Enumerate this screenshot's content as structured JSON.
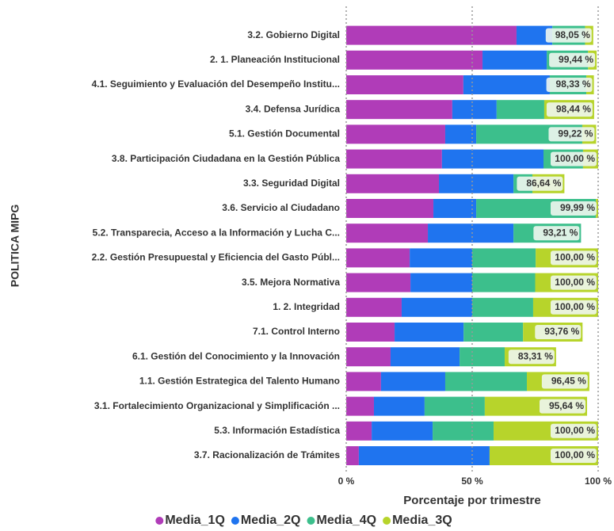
{
  "chart_data": {
    "type": "stacked-barh",
    "ylabel": "POLITICA MIPG",
    "xlabel": "Porcentaje por trimestre",
    "xlim": [
      0,
      100
    ],
    "xticks": [
      {
        "value": 0,
        "label": "0 %"
      },
      {
        "value": 50,
        "label": "50 %"
      },
      {
        "value": 100,
        "label": "100 %"
      }
    ],
    "grid": true,
    "legend": "bottom",
    "categories": [
      "3.2. Gobierno Digital",
      "2. 1. Planeación Institucional",
      "4.1. Seguimiento y Evaluación del Desempeño Institu...",
      "3.4. Defensa Jurídica",
      "5.1. Gestión Documental",
      "3.8. Participación Ciudadana en la Gestión Pública",
      "3.3. Seguridad Digital",
      "3.6. Servicio al Ciudadano",
      "5.2. Transparecia, Acceso a la Información y Lucha C...",
      "2.2. Gestión Presupuestal y Eficiencia del Gasto Públ...",
      "3.5. Mejora Normativa",
      "1. 2. Integridad",
      "7.1. Control Interno",
      "6.1. Gestión del Conocimiento y la Innovación",
      "1.1. Gestión Estrategica del Talento Humano",
      "3.1. Fortalecimiento Organizacional y Simplificación ...",
      "5.3. Información Estadística",
      "3.7. Racionalización de Trámites"
    ],
    "series": [
      {
        "name": "Media_1Q",
        "color": "#b03cb8",
        "values": [
          67.6,
          54.1,
          46.5,
          42.1,
          39.3,
          38.0,
          36.8,
          34.6,
          32.4,
          25.2,
          25.5,
          22.0,
          19.2,
          17.6,
          13.8,
          11.0,
          10.1,
          5.0
        ]
      },
      {
        "name": "Media_2Q",
        "color": "#1f74ef",
        "values": [
          14.2,
          25.5,
          34.3,
          17.6,
          12.3,
          40.3,
          29.6,
          17.0,
          34.0,
          24.8,
          24.5,
          28.0,
          27.4,
          27.4,
          25.5,
          20.1,
          24.2,
          51.9
        ]
      },
      {
        "name": "Media_4Q",
        "color": "#3cbf8c",
        "values": [
          13.0,
          16.4,
          14.5,
          18.9,
          42.1,
          15.7,
          7.5,
          47.5,
          26.8,
          25.2,
          25.0,
          24.2,
          23.6,
          17.9,
          32.4,
          23.9,
          24.2,
          0
        ]
      },
      {
        "name": "Media_3Q",
        "color": "#b7d42b",
        "values": [
          3.25,
          3.4,
          3.0,
          19.8,
          5.5,
          6.0,
          12.7,
          0.9,
          0,
          24.8,
          25.0,
          25.8,
          23.6,
          20.4,
          24.8,
          40.6,
          41.5,
          43.1
        ]
      }
    ],
    "total_labels": [
      "98,05 %",
      "99,44 %",
      "98,33 %",
      "98,44 %",
      "99,22 %",
      "100,00 %",
      "86,64 %",
      "99,99 %",
      "93,21 %",
      "100,00 %",
      "100,00 %",
      "100,00 %",
      "93,76 %",
      "83,31 %",
      "96,45 %",
      "95,64 %",
      "100,00 %",
      "100,00 %"
    ]
  }
}
